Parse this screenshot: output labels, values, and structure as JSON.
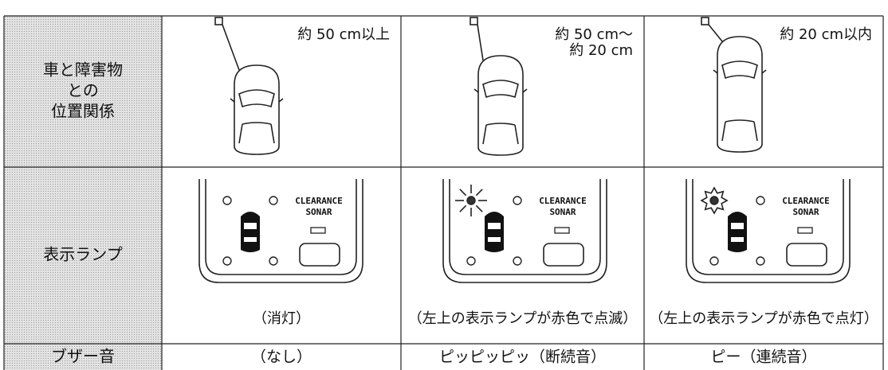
{
  "table": {
    "rows": [
      {
        "header": [
          "車と障害物",
          "との",
          "位置関係"
        ],
        "cells": [
          [
            "約 50 cm以上"
          ],
          [
            "約 50 cm〜",
            "約 20 cm"
          ],
          [
            "約 20 cm以内"
          ]
        ]
      },
      {
        "header": [
          "表示ランプ"
        ],
        "panel_label": [
          "CLEARANCE",
          "SONAR"
        ],
        "cells": [
          "（消灯）",
          "（左上の表示ランプが赤色で点滅）",
          "（左上の表示ランプが赤色で点灯）"
        ]
      },
      {
        "header": [
          "ブザー音"
        ],
        "cells": [
          "（なし）",
          "ピッピッピッ（断続音）",
          "ピー（連続音）"
        ]
      }
    ]
  }
}
